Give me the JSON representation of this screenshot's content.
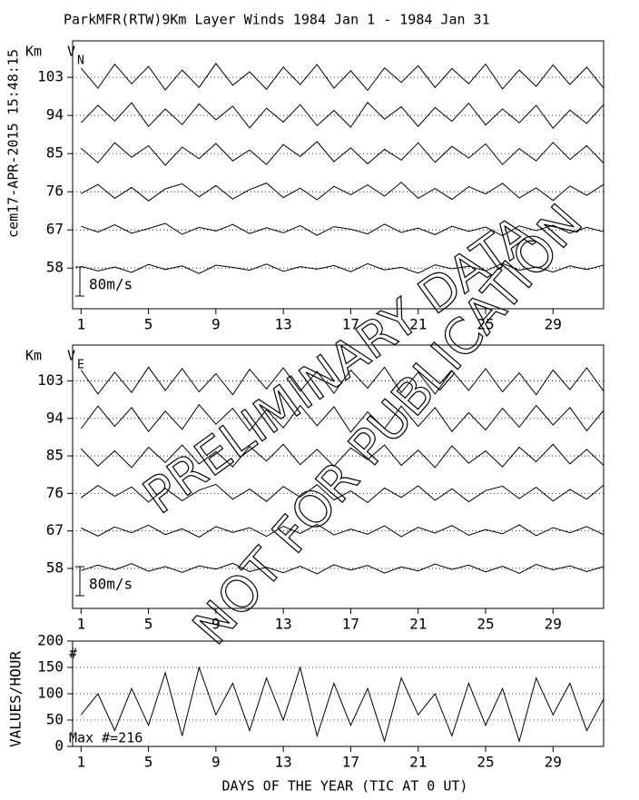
{
  "title": "ParkMFR(RTW)9Km Layer Winds 1984 Jan  1 - 1984 Jan 31",
  "side_label": "cem17-APR-2015 15:48:15",
  "xlabel": "DAYS OF THE YEAR (TIC AT 0 UT)",
  "watermark": [
    "PRELIMINARY DATA",
    "NOT FOR PUBLICATION"
  ],
  "chart_data": [
    {
      "type": "wind",
      "ylabel": "Km",
      "panel_label": "V",
      "panel_subscript": "N",
      "scale": {
        "value": 80,
        "label": "80m/s"
      },
      "xlim": [
        0.5,
        32
      ],
      "xticks": [
        1,
        5,
        9,
        13,
        17,
        21,
        25,
        29
      ],
      "ylim": [
        48.4,
        111.6
      ],
      "yticks": [
        58,
        67,
        76,
        85,
        94,
        103
      ],
      "grid": true,
      "x": [
        1,
        2,
        3,
        4,
        5,
        6,
        7,
        8,
        9,
        10,
        11,
        12,
        13,
        14,
        15,
        16,
        17,
        18,
        19,
        20,
        21,
        22,
        23,
        24,
        25,
        26,
        27,
        28,
        29,
        30,
        31,
        32
      ],
      "series": [
        {
          "color": "#000",
          "values": [
            5,
            -8,
            3,
            -12,
            10,
            -4,
            6,
            -15,
            8,
            2,
            -6,
            11,
            -9,
            4,
            -3,
            7,
            -10,
            12,
            -5,
            2,
            -14,
            9,
            -2,
            5,
            -8,
            13,
            -6,
            3,
            -11,
            6,
            -4,
            8
          ]
        },
        {
          "color": "#000",
          "values": [
            10,
            -6,
            14,
            -9,
            4,
            18,
            -12,
            7,
            -3,
            15,
            -10,
            6,
            -8,
            12,
            -15,
            9,
            2,
            -11,
            16,
            -7,
            5,
            -13,
            10,
            -4,
            8,
            -16,
            11,
            -2,
            13,
            -9,
            7,
            -5
          ]
        },
        {
          "color": "#000",
          "values": [
            -5,
            20,
            -18,
            12,
            -25,
            8,
            22,
            -14,
            17,
            -20,
            6,
            24,
            -16,
            10,
            -22,
            15,
            -8,
            19,
            -12,
            26,
            -18,
            9,
            -21,
            14,
            -6,
            23,
            -17,
            11,
            -24,
            16,
            -10,
            20
          ]
        },
        {
          "color": "#000",
          "values": [
            15,
            -25,
            30,
            -10,
            22,
            -32,
            18,
            -14,
            28,
            -20,
            10,
            -30,
            25,
            -8,
            33,
            -22,
            16,
            -28,
            12,
            -18,
            30,
            -24,
            20,
            -12,
            27,
            -30,
            14,
            -20,
            31,
            -16,
            22,
            -26
          ]
        },
        {
          "color": "#000",
          "values": [
            -20,
            28,
            -15,
            35,
            -30,
            18,
            -25,
            32,
            -12,
            26,
            -34,
            20,
            -18,
            30,
            -28,
            14,
            -32,
            36,
            -10,
            24,
            -30,
            22,
            -16,
            34,
            -26,
            18,
            -20,
            28,
            -35,
            15,
            -22,
            30
          ]
        },
        {
          "color": "#000",
          "values": [
            25,
            -30,
            36,
            -18,
            30,
            -35,
            20,
            -28,
            38,
            -22,
            15,
            -33,
            28,
            -20,
            35,
            -30,
            18,
            -36,
            26,
            -14,
            32,
            -28,
            24,
            -18,
            36,
            -32,
            20,
            -25,
            34,
            -20,
            28,
            -30
          ]
        }
      ]
    },
    {
      "type": "wind",
      "ylabel": "Km",
      "panel_label": "V",
      "panel_subscript": "E",
      "scale": {
        "value": 80,
        "label": "80m/s"
      },
      "xlim": [
        0.5,
        32
      ],
      "xticks": [
        1,
        5,
        9,
        13,
        17,
        21,
        25,
        29
      ],
      "ylim": [
        48.4,
        111.6
      ],
      "yticks": [
        58,
        67,
        76,
        85,
        94,
        103
      ],
      "grid": true,
      "x": [
        1,
        2,
        3,
        4,
        5,
        6,
        7,
        8,
        9,
        10,
        11,
        12,
        13,
        14,
        15,
        16,
        17,
        18,
        19,
        20,
        21,
        22,
        23,
        24,
        25,
        26,
        27,
        28,
        29,
        30,
        31,
        32
      ],
      "series": [
        {
          "color": "#000",
          "values": [
            -6,
            9,
            -4,
            13,
            -8,
            5,
            -11,
            7,
            -2,
            14,
            -9,
            3,
            -12,
            6,
            -15,
            10,
            -5,
            8,
            -13,
            4,
            -7,
            12,
            -3,
            9,
            -10,
            6,
            -14,
            11,
            -4,
            7,
            -9,
            5
          ]
        },
        {
          "color": "#000",
          "values": [
            8,
            -14,
            11,
            -5,
            16,
            -10,
            6,
            -17,
            12,
            -4,
            9,
            -15,
            13,
            -7,
            18,
            -11,
            5,
            -9,
            14,
            -16,
            10,
            -6,
            15,
            -12,
            4,
            -8,
            17,
            -13,
            9,
            -5,
            12,
            -10
          ]
        },
        {
          "color": "#000",
          "values": [
            -12,
            22,
            -8,
            18,
            -24,
            14,
            -20,
            9,
            25,
            -16,
            12,
            -22,
            19,
            -10,
            24,
            -18,
            7,
            -25,
            15,
            -11,
            21,
            -19,
            13,
            -23,
            8,
            20,
            -14,
            17,
            -21,
            11,
            -16,
            23
          ]
        },
        {
          "color": "#000",
          "values": [
            20,
            -28,
            14,
            -32,
            24,
            -18,
            30,
            -22,
            12,
            -30,
            26,
            -14,
            32,
            -24,
            18,
            -28,
            22,
            -10,
            30,
            -26,
            16,
            -32,
            28,
            -20,
            14,
            -30,
            24,
            -16,
            32,
            -22,
            18,
            -26
          ]
        },
        {
          "color": "#000",
          "values": [
            -28,
            34,
            -22,
            30,
            -36,
            20,
            -30,
            38,
            -16,
            28,
            -34,
            24,
            -26,
            36,
            -20,
            32,
            -38,
            18,
            -28,
            34,
            -22,
            30,
            -36,
            16,
            -32,
            28,
            -24,
            36,
            -18,
            30,
            -34,
            22
          ]
        },
        {
          "color": "#000",
          "values": [
            30,
            -36,
            24,
            -32,
            38,
            -26,
            34,
            -30,
            20,
            -38,
            32,
            -22,
            36,
            -28,
            26,
            -34,
            30,
            -20,
            38,
            -32,
            24,
            -36,
            28,
            -26,
            34,
            -30,
            22,
            -38,
            30,
            -24,
            36,
            -28
          ]
        }
      ]
    },
    {
      "type": "line",
      "ylabel": "VALUES/HOUR",
      "panel_label": "#",
      "annotation": "Max #=216",
      "xlim": [
        0.5,
        32
      ],
      "xticks": [
        1,
        5,
        9,
        13,
        17,
        21,
        25,
        29
      ],
      "ylim": [
        0,
        200
      ],
      "yticks": [
        0,
        50,
        100,
        150,
        200
      ],
      "grid": true,
      "x": [
        1,
        2,
        3,
        4,
        5,
        6,
        7,
        8,
        9,
        10,
        11,
        12,
        13,
        14,
        15,
        16,
        17,
        18,
        19,
        20,
        21,
        22,
        23,
        24,
        25,
        26,
        27,
        28,
        29,
        30,
        31,
        32
      ],
      "series": [
        {
          "color": "#000",
          "values": [
            60,
            100,
            30,
            110,
            40,
            140,
            20,
            150,
            60,
            120,
            30,
            130,
            50,
            150,
            20,
            120,
            40,
            110,
            10,
            130,
            60,
            100,
            20,
            120,
            40,
            110,
            10,
            130,
            60,
            120,
            30,
            90
          ]
        }
      ]
    }
  ]
}
